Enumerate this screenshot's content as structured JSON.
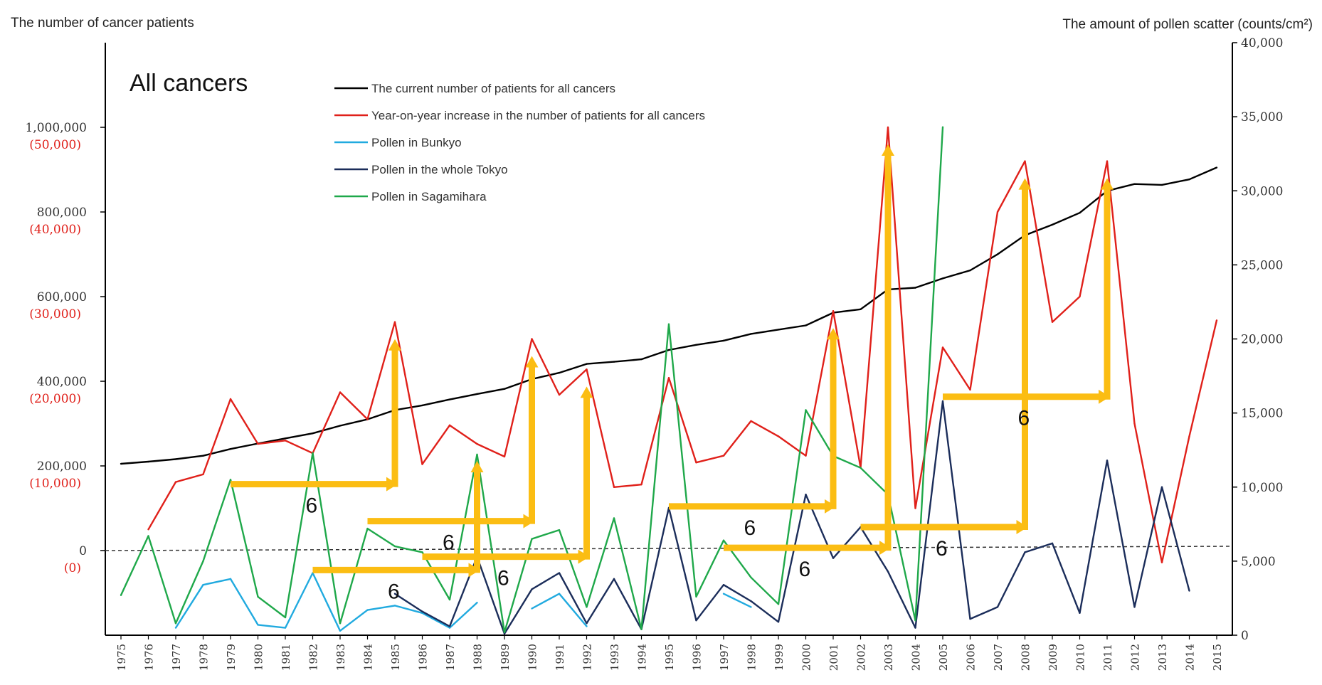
{
  "chart_data": {
    "type": "line",
    "title": "All cancers",
    "left_axis_label": "The number of cancer patients",
    "right_axis_label": "The amount of pollen scatter (counts/cm²)",
    "left_ticks": [
      "0",
      "200,000",
      "400,000",
      "600,000",
      "800,000",
      "1,000,000"
    ],
    "left_ticks_secondary": [
      "(0)",
      "(10,000)",
      "(20,000)",
      "(30,000)",
      "(40,000)",
      "(50,000)"
    ],
    "right_ticks": [
      "0",
      "5,000",
      "10,000",
      "15,000",
      "20,000",
      "25,000",
      "30,000",
      "35,000",
      "40,000"
    ],
    "left_range": [
      -200000,
      1200000
    ],
    "increase_range": [
      -10000,
      60000
    ],
    "right_range": [
      0,
      40000
    ],
    "years": [
      1975,
      1976,
      1977,
      1978,
      1979,
      1980,
      1981,
      1982,
      1983,
      1984,
      1985,
      1986,
      1987,
      1988,
      1989,
      1990,
      1991,
      1992,
      1993,
      1994,
      1995,
      1996,
      1997,
      1998,
      1999,
      2000,
      2001,
      2002,
      2003,
      2004,
      2005,
      2006,
      2007,
      2008,
      2009,
      2010,
      2011,
      2012,
      2013,
      2014,
      2015
    ],
    "series": [
      {
        "name": "The current number of patients for all cancers",
        "color": "#000000",
        "axis": "left",
        "values": [
          205000,
          210000,
          216000,
          224000,
          240000,
          253000,
          265000,
          277000,
          295000,
          310000,
          332000,
          343000,
          357000,
          370000,
          382000,
          405000,
          420000,
          441000,
          446000,
          452000,
          474000,
          486000,
          496000,
          512000,
          522000,
          532000,
          562000,
          570000,
          617000,
          621000,
          643000,
          662000,
          700000,
          745000,
          770000,
          798000,
          850000,
          866000,
          864000,
          877000,
          905000
        ]
      },
      {
        "name": "Year-on-year increase in the number of patients for all cancers",
        "color": "#e0201a",
        "axis": "increase",
        "values": [
          null,
          2500,
          8100,
          9000,
          17900,
          12600,
          13000,
          11500,
          18700,
          15500,
          27000,
          10200,
          14800,
          12600,
          11100,
          25000,
          18400,
          21400,
          7500,
          7800,
          20400,
          10400,
          11200,
          15300,
          13500,
          11200,
          28300,
          9800,
          50000,
          5000,
          24000,
          19000,
          40000,
          46000,
          27000,
          30000,
          46000,
          15000,
          -1400,
          13500,
          27200
        ]
      },
      {
        "name": "Pollen in Bunkyo",
        "color": "#21aadf",
        "axis": "right",
        "values": [
          null,
          null,
          500,
          3400,
          3800,
          700,
          500,
          4200,
          300,
          1700,
          2000,
          1500,
          500,
          2200,
          null,
          1800,
          2800,
          600,
          null,
          null,
          null,
          null,
          2800,
          1900,
          null,
          null,
          null,
          null,
          null,
          null,
          null,
          null,
          null,
          null,
          null,
          null,
          null,
          null,
          null,
          null,
          null
        ]
      },
      {
        "name": "Pollen in the whole Tokyo",
        "color": "#1b2d5a",
        "axis": "right",
        "values": [
          null,
          null,
          null,
          null,
          null,
          null,
          null,
          null,
          null,
          null,
          2800,
          1600,
          600,
          5300,
          100,
          3100,
          4200,
          800,
          3800,
          400,
          8600,
          1000,
          3400,
          2300,
          900,
          9500,
          5200,
          7300,
          4300,
          500,
          15800,
          1100,
          1900,
          5600,
          6200,
          1500,
          11800,
          1900,
          10000,
          3000,
          null
        ]
      },
      {
        "name": "Pollen in Sagamihara",
        "color": "#1fa84a",
        "axis": "right",
        "values": [
          2700,
          6700,
          800,
          5000,
          10500,
          2600,
          1200,
          12300,
          800,
          7200,
          6000,
          5600,
          2400,
          12200,
          200,
          6500,
          7100,
          1900,
          7900,
          400,
          21000,
          2600,
          6400,
          3900,
          2100,
          15200,
          12100,
          11300,
          9500,
          1000,
          34300,
          null,
          null,
          null,
          null,
          null,
          null,
          null,
          null,
          null,
          null
        ]
      }
    ],
    "lag_arrows": [
      {
        "from_year": 1979,
        "to_year": 1985,
        "label": "6",
        "pollen": 10200
      },
      {
        "from_year": 1982,
        "to_year": 1988,
        "label": "6",
        "pollen": 4400
      },
      {
        "from_year": 1984,
        "to_year": 1990,
        "label": "6",
        "pollen": 7700
      },
      {
        "from_year": 1986,
        "to_year": 1992,
        "label": "6",
        "pollen": 5300
      },
      {
        "from_year": 1995,
        "to_year": 2001,
        "label": "6",
        "pollen": 8700
      },
      {
        "from_year": 1997,
        "to_year": 2003,
        "label": "6",
        "pollen": 5900
      },
      {
        "from_year": 2002,
        "to_year": 2008,
        "label": "6",
        "pollen": 7300
      },
      {
        "from_year": 2005,
        "to_year": 2011,
        "label": "6",
        "pollen": 16100
      }
    ],
    "zero_reference_line": true,
    "legend_position": "top-left"
  },
  "colors": {
    "arrow": "#fbbd13",
    "grid_zero": "#333333"
  }
}
